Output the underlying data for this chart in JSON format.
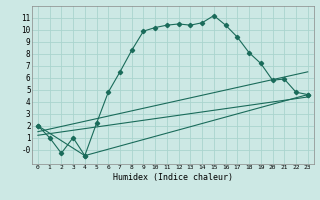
{
  "xlabel": "Humidex (Indice chaleur)",
  "background_color": "#cce8e4",
  "grid_color": "#aad4ce",
  "line_color": "#1a6b5a",
  "xlim": [
    -0.5,
    23.5
  ],
  "ylim": [
    -1.2,
    12
  ],
  "xticks": [
    0,
    1,
    2,
    3,
    4,
    5,
    6,
    7,
    8,
    9,
    10,
    11,
    12,
    13,
    14,
    15,
    16,
    17,
    18,
    19,
    20,
    21,
    22,
    23
  ],
  "yticks": [
    0,
    1,
    2,
    3,
    4,
    5,
    6,
    7,
    8,
    9,
    10,
    11
  ],
  "ytick_labels": [
    "-0",
    "1",
    "2",
    "3",
    "4",
    "5",
    "6",
    "7",
    "8",
    "9",
    "10",
    "11"
  ],
  "curve1_x": [
    0,
    1,
    2,
    3,
    4,
    5,
    6,
    7,
    8,
    9,
    10,
    11,
    12,
    13,
    14,
    15,
    16,
    17,
    18,
    19,
    20,
    21,
    22,
    23
  ],
  "curve1_y": [
    2.0,
    1.0,
    -0.3,
    1.0,
    -0.5,
    2.2,
    4.8,
    6.5,
    8.3,
    9.9,
    10.2,
    10.4,
    10.5,
    10.4,
    10.6,
    11.2,
    10.4,
    9.4,
    8.1,
    7.2,
    5.8,
    5.9,
    4.8,
    4.6
  ],
  "curve2_x": [
    0,
    4,
    23
  ],
  "curve2_y": [
    2.0,
    -0.5,
    4.6
  ],
  "curve3_x": [
    0,
    23
  ],
  "curve3_y": [
    1.5,
    6.5
  ],
  "curve4_x": [
    0,
    23
  ],
  "curve4_y": [
    1.2,
    4.4
  ]
}
